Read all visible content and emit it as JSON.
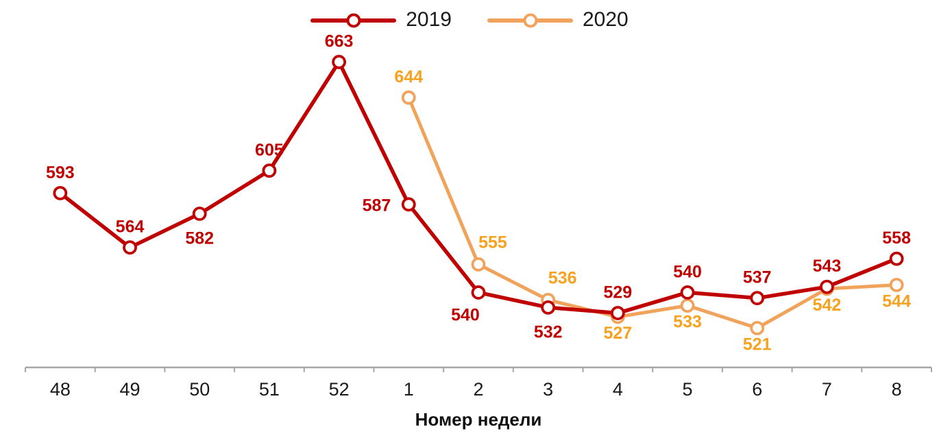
{
  "chart_data": {
    "type": "line",
    "title": "",
    "xlabel": "Номер недели",
    "ylabel": "",
    "ylim": [
      500,
      700
    ],
    "grid": false,
    "legend_position": "top-center",
    "marker": "circle-open",
    "axis_color": "#a6a6a6",
    "tick_label_color": "#1a1a1a",
    "categories": [
      "48",
      "49",
      "50",
      "51",
      "52",
      "1",
      "2",
      "3",
      "4",
      "5",
      "6",
      "7",
      "8"
    ],
    "series": [
      {
        "name": "2019",
        "color": "#c00000",
        "label_color": "#c00000",
        "values": [
          593,
          564,
          582,
          605,
          663,
          587,
          540,
          532,
          529,
          540,
          537,
          543,
          558
        ],
        "label_pos": [
          "above",
          "above",
          "below",
          "above",
          "above",
          "left",
          "below-left",
          "below",
          "above",
          "above",
          "above",
          "above",
          "above"
        ]
      },
      {
        "name": "2020",
        "color": "#f1a35c",
        "label_color": "#f8a11e",
        "values": [
          null,
          null,
          null,
          null,
          null,
          644,
          555,
          536,
          527,
          533,
          521,
          542,
          544
        ],
        "label_pos": [
          null,
          null,
          null,
          null,
          null,
          "above",
          "above-right",
          "above-right",
          "below",
          "below",
          "below",
          "below",
          "below"
        ]
      }
    ]
  }
}
